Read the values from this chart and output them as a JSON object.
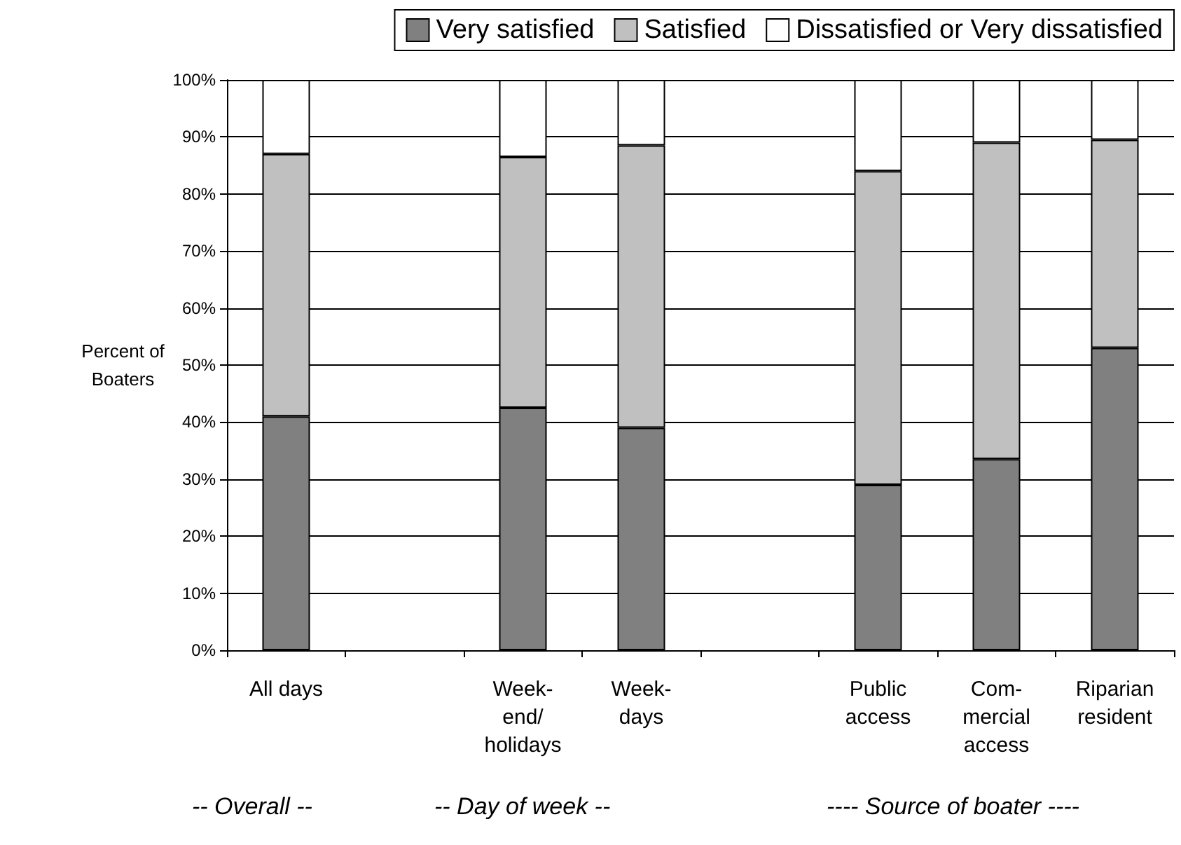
{
  "chart_data": {
    "type": "bar",
    "stacked": true,
    "ylabel": "Percent of\nBoaters",
    "categories": [
      "All days",
      null,
      "Week-\nend/\nholidays",
      "Week-\ndays",
      null,
      "Public\naccess",
      "Com-\nmercial\naccess",
      "Riparian\nresident"
    ],
    "series": [
      {
        "name": "Very satisfied",
        "color": "#808080",
        "values": [
          41,
          null,
          42.5,
          39,
          null,
          29,
          33.5,
          53
        ]
      },
      {
        "name": "Satisfied",
        "color": "#c0c0c0",
        "values": [
          46,
          null,
          44,
          49.5,
          null,
          55,
          55.5,
          36.5
        ]
      },
      {
        "name": "Dissatisfied or Very dissatisfied",
        "color": "#ffffff",
        "values": [
          13,
          null,
          13.5,
          11.5,
          null,
          16,
          11,
          10.5
        ]
      }
    ],
    "ylim": [
      0,
      100
    ],
    "yticks": [
      {
        "value": 0,
        "label": "0%"
      },
      {
        "value": 10,
        "label": "10%"
      },
      {
        "value": 20,
        "label": "20%"
      },
      {
        "value": 30,
        "label": "30%"
      },
      {
        "value": 40,
        "label": "40%"
      },
      {
        "value": 50,
        "label": "50%"
      },
      {
        "value": 60,
        "label": "60%"
      },
      {
        "value": 70,
        "label": "70%"
      },
      {
        "value": 80,
        "label": "80%"
      },
      {
        "value": 90,
        "label": "90%"
      },
      {
        "value": 100,
        "label": "100%"
      }
    ],
    "grid": "y",
    "legend": "top",
    "annotations": [
      "-- Overall --",
      "-- Day of week --",
      "---- Source of boater ----"
    ]
  }
}
